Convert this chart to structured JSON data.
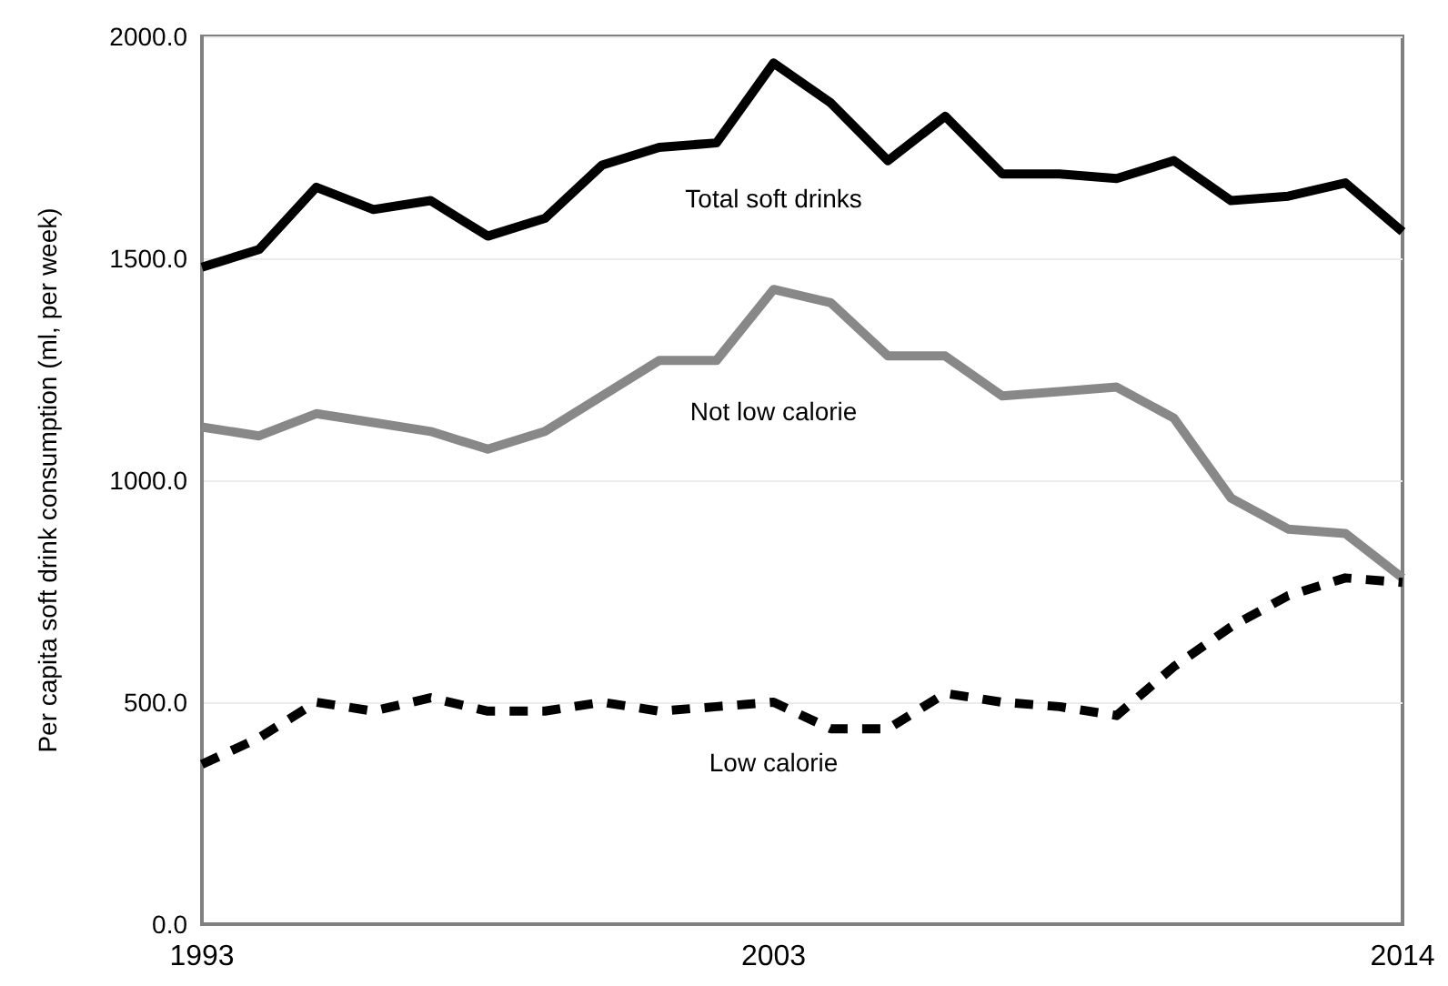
{
  "chart_data": {
    "type": "line",
    "ylabel": "Per capita soft drink consumption (ml, per week)",
    "x": [
      1993,
      1994,
      1995,
      1996,
      1997,
      1998,
      1999,
      2000,
      2001,
      2002,
      2003,
      2004,
      2005,
      2006,
      2007,
      2008,
      2009,
      2010,
      2011,
      2012,
      2013,
      2014
    ],
    "series": [
      {
        "name": "Total soft drinks",
        "color": "#000000",
        "line_style": "solid",
        "values": [
          1480,
          1520,
          1660,
          1610,
          1630,
          1550,
          1590,
          1710,
          1750,
          1760,
          1940,
          1850,
          1720,
          1820,
          1690,
          1690,
          1680,
          1720,
          1630,
          1640,
          1670,
          1560
        ]
      },
      {
        "name": "Not low calorie",
        "color": "#888888",
        "line_style": "solid",
        "values": [
          1120,
          1100,
          1150,
          1130,
          1110,
          1070,
          1110,
          1190,
          1270,
          1270,
          1430,
          1400,
          1280,
          1280,
          1190,
          1200,
          1210,
          1140,
          960,
          890,
          880,
          780
        ]
      },
      {
        "name": "Low calorie",
        "color": "#000000",
        "line_style": "dashed",
        "values": [
          360,
          420,
          500,
          480,
          510,
          480,
          480,
          500,
          480,
          490,
          500,
          440,
          440,
          520,
          500,
          490,
          470,
          580,
          670,
          740,
          780,
          770
        ]
      }
    ],
    "xlim": [
      1993,
      2014
    ],
    "xticks": [
      1993,
      2003,
      2014
    ],
    "ylim": [
      0,
      2000
    ],
    "yticks": [
      {
        "value": 0,
        "label": "0.0"
      },
      {
        "value": 500,
        "label": "500.0"
      },
      {
        "value": 1000,
        "label": "1000.0"
      },
      {
        "value": 1500,
        "label": "1500.0"
      },
      {
        "value": 2000,
        "label": "2000.0"
      }
    ],
    "grid": "y",
    "marker": "none"
  }
}
